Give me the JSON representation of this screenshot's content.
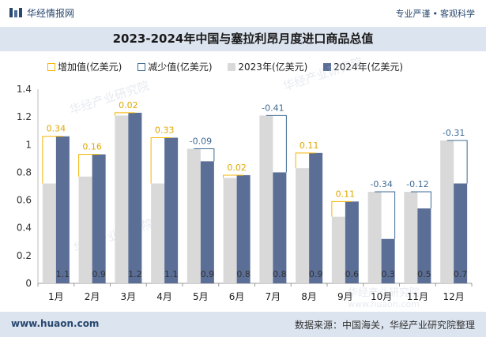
{
  "header": {
    "brand": "华经情报网",
    "tagline_left": "专业严谨",
    "tagline_right": "客观科学"
  },
  "title": "2023-2024年中国与塞拉利昂月度进口商品总值",
  "legend": {
    "increase": "增加值(亿美元)",
    "decrease": "减少值(亿美元)",
    "s2023": "2023年(亿美元)",
    "s2024": "2024年(亿美元)"
  },
  "footer": {
    "site": "www.huaon.com",
    "source": "数据来源：中国海关，华经产业研究院整理"
  },
  "colors": {
    "s2023": "#d9d9d9",
    "s2024": "#5a6e96",
    "increase": "#f5b400",
    "decrease": "#3f6b94"
  },
  "chart_data": {
    "type": "bar",
    "title": "2023-2024年中国与塞拉利昂月度进口商品总值",
    "categories": [
      "1月",
      "2月",
      "3月",
      "4月",
      "5月",
      "6月",
      "7月",
      "8月",
      "9月",
      "10月",
      "11月",
      "12月"
    ],
    "series": [
      {
        "name": "2023年(亿美元)",
        "values": [
          0.72,
          0.77,
          1.21,
          0.72,
          0.97,
          0.76,
          1.21,
          0.83,
          0.48,
          0.66,
          0.66,
          1.03
        ]
      },
      {
        "name": "2024年(亿美元)",
        "values": [
          1.06,
          0.93,
          1.23,
          1.05,
          0.88,
          0.78,
          0.8,
          0.94,
          0.59,
          0.32,
          0.54,
          0.72
        ]
      }
    ],
    "bar_labels": [
      "1.1",
      "0.9",
      "1.2",
      "1.1",
      "0.9",
      "0.8",
      "0.8",
      "0.9",
      "0.6",
      "0.3",
      "0.5",
      "0.7"
    ],
    "changes": [
      0.34,
      0.16,
      0.02,
      0.33,
      -0.09,
      0.02,
      -0.41,
      0.11,
      0.11,
      -0.34,
      -0.12,
      -0.31
    ],
    "change_labels": [
      "0.34",
      "0.16",
      "0.02",
      "0.33",
      "-0.09",
      "0.02",
      "-0.41",
      "0.11",
      "0.11",
      "-0.34",
      "-0.12",
      "-0.31"
    ],
    "yticks": [
      0,
      0.2,
      0.4,
      0.6,
      0.8,
      1,
      1.2,
      1.4
    ],
    "ytick_labels": [
      "0",
      "0.2",
      "0.4",
      "0.6",
      "0.8",
      "1",
      "1.2",
      "1.4"
    ],
    "ylim": [
      0,
      1.4
    ],
    "xlabel": "",
    "ylabel": ""
  },
  "watermark": {
    "cn": "华经产业研究院",
    "url": "www.huaon.com"
  }
}
